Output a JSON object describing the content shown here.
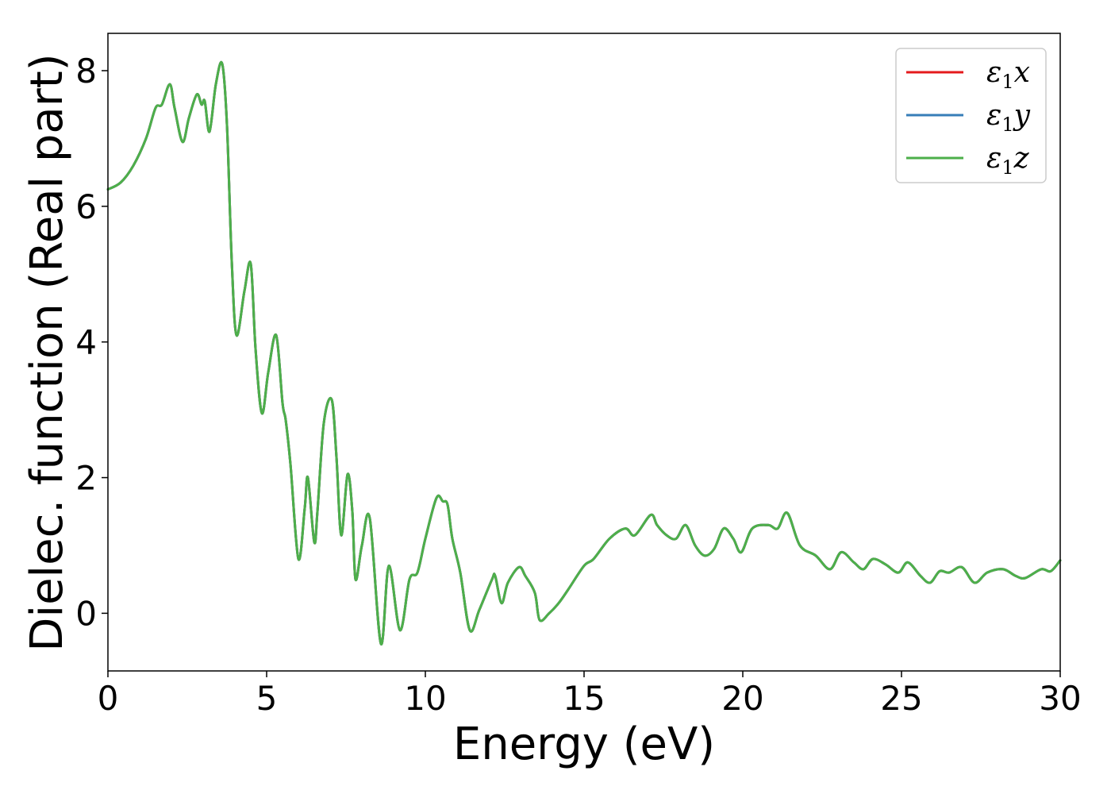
{
  "chart_data": {
    "type": "line",
    "xlabel": "Energy (eV)",
    "ylabel": "Dielec. function (Real part)",
    "xlim": [
      0,
      30
    ],
    "ylim": [
      -0.85,
      8.55
    ],
    "xticks": [
      0,
      5,
      10,
      15,
      20,
      25,
      30
    ],
    "yticks": [
      0,
      2,
      4,
      6,
      8
    ],
    "xtick_labels": [
      "0",
      "5",
      "10",
      "15",
      "20",
      "25",
      "30"
    ],
    "ytick_labels": [
      "0",
      "2",
      "4",
      "6",
      "8"
    ],
    "grid": false,
    "legend": {
      "placement": "top-right",
      "entries": [
        {
          "base": "ε",
          "sub": "1",
          "comp": "x",
          "color": "#e41a1c"
        },
        {
          "base": "ε",
          "sub": "1",
          "comp": "y",
          "color": "#377eb8"
        },
        {
          "base": "ε",
          "sub": "1",
          "comp": "z",
          "color": "#4daf4a"
        }
      ]
    },
    "series": [
      {
        "name": "ε1x",
        "color": "#e41a1c",
        "x": [
          0,
          0.4,
          0.8,
          1.2,
          1.5,
          1.7,
          1.95,
          2.1,
          2.35,
          2.55,
          2.8,
          2.95,
          3.05,
          3.2,
          3.4,
          3.6,
          3.75,
          3.9,
          4.05,
          4.3,
          4.5,
          4.65,
          4.85,
          5.05,
          5.3,
          5.5,
          5.6,
          5.75,
          6.0,
          6.2,
          6.3,
          6.5,
          6.6,
          6.8,
          7.05,
          7.2,
          7.35,
          7.55,
          7.7,
          7.8,
          8.0,
          8.25,
          8.6,
          8.85,
          9.2,
          9.5,
          9.75,
          10.0,
          10.35,
          10.55,
          10.7,
          10.85,
          11.1,
          11.4,
          11.7,
          12.1,
          12.2,
          12.4,
          12.6,
          12.95,
          13.15,
          13.45,
          13.6,
          13.9,
          14.2,
          14.5,
          15.0,
          15.3,
          15.8,
          16.3,
          16.6,
          17.1,
          17.3,
          17.6,
          17.9,
          18.2,
          18.5,
          18.8,
          19.1,
          19.4,
          19.7,
          19.95,
          20.3,
          20.8,
          21.1,
          21.4,
          21.8,
          22.3,
          22.75,
          23.1,
          23.5,
          23.8,
          24.1,
          24.5,
          24.9,
          25.2,
          25.6,
          25.9,
          26.2,
          26.5,
          26.9,
          27.3,
          27.7,
          28.2,
          28.6,
          28.9,
          29.4,
          29.7,
          30.0
        ],
        "y": [
          6.25,
          6.35,
          6.6,
          7.0,
          7.45,
          7.5,
          7.8,
          7.45,
          6.95,
          7.3,
          7.65,
          7.5,
          7.55,
          7.1,
          7.8,
          8.1,
          7.2,
          5.2,
          4.1,
          4.75,
          5.15,
          3.9,
          2.95,
          3.55,
          4.1,
          3.1,
          2.85,
          2.2,
          0.8,
          1.55,
          2.0,
          1.05,
          1.5,
          2.8,
          3.15,
          2.3,
          1.15,
          2.05,
          1.5,
          0.5,
          1.0,
          1.4,
          -0.45,
          0.7,
          -0.25,
          0.5,
          0.6,
          1.1,
          1.7,
          1.65,
          1.6,
          1.1,
          0.6,
          -0.25,
          0.05,
          0.5,
          0.55,
          0.15,
          0.45,
          0.68,
          0.55,
          0.3,
          -0.1,
          0.0,
          0.15,
          0.35,
          0.7,
          0.8,
          1.1,
          1.25,
          1.15,
          1.45,
          1.3,
          1.15,
          1.1,
          1.3,
          1.0,
          0.85,
          0.95,
          1.25,
          1.1,
          0.9,
          1.25,
          1.3,
          1.25,
          1.48,
          1.0,
          0.85,
          0.65,
          0.9,
          0.75,
          0.65,
          0.8,
          0.72,
          0.6,
          0.75,
          0.55,
          0.45,
          0.62,
          0.6,
          0.68,
          0.45,
          0.6,
          0.65,
          0.55,
          0.52,
          0.65,
          0.62,
          0.78
        ]
      },
      {
        "name": "ε1y",
        "color": "#377eb8",
        "x": [
          0,
          0.4,
          0.8,
          1.2,
          1.5,
          1.7,
          1.95,
          2.1,
          2.35,
          2.55,
          2.8,
          2.95,
          3.05,
          3.2,
          3.4,
          3.6,
          3.75,
          3.9,
          4.05,
          4.3,
          4.5,
          4.65,
          4.85,
          5.05,
          5.3,
          5.5,
          5.6,
          5.75,
          6.0,
          6.2,
          6.3,
          6.5,
          6.6,
          6.8,
          7.05,
          7.2,
          7.35,
          7.55,
          7.7,
          7.8,
          8.0,
          8.25,
          8.6,
          8.85,
          9.2,
          9.5,
          9.75,
          10.0,
          10.35,
          10.55,
          10.7,
          10.85,
          11.1,
          11.4,
          11.7,
          12.1,
          12.2,
          12.4,
          12.6,
          12.95,
          13.15,
          13.45,
          13.6,
          13.9,
          14.2,
          14.5,
          15.0,
          15.3,
          15.8,
          16.3,
          16.6,
          17.1,
          17.3,
          17.6,
          17.9,
          18.2,
          18.5,
          18.8,
          19.1,
          19.4,
          19.7,
          19.95,
          20.3,
          20.8,
          21.1,
          21.4,
          21.8,
          22.3,
          22.75,
          23.1,
          23.5,
          23.8,
          24.1,
          24.5,
          24.9,
          25.2,
          25.6,
          25.9,
          26.2,
          26.5,
          26.9,
          27.3,
          27.7,
          28.2,
          28.6,
          28.9,
          29.4,
          29.7,
          30.0
        ],
        "y": [
          6.25,
          6.35,
          6.6,
          7.0,
          7.45,
          7.5,
          7.8,
          7.45,
          6.95,
          7.3,
          7.65,
          7.5,
          7.55,
          7.1,
          7.8,
          8.1,
          7.2,
          5.2,
          4.1,
          4.75,
          5.15,
          3.9,
          2.95,
          3.55,
          4.1,
          3.1,
          2.85,
          2.2,
          0.8,
          1.55,
          2.0,
          1.05,
          1.5,
          2.8,
          3.15,
          2.3,
          1.15,
          2.05,
          1.5,
          0.5,
          1.0,
          1.4,
          -0.45,
          0.7,
          -0.25,
          0.5,
          0.6,
          1.1,
          1.7,
          1.65,
          1.6,
          1.1,
          0.6,
          -0.25,
          0.05,
          0.5,
          0.55,
          0.15,
          0.45,
          0.68,
          0.55,
          0.3,
          -0.1,
          0.0,
          0.15,
          0.35,
          0.7,
          0.8,
          1.1,
          1.25,
          1.15,
          1.45,
          1.3,
          1.15,
          1.1,
          1.3,
          1.0,
          0.85,
          0.95,
          1.25,
          1.1,
          0.9,
          1.25,
          1.3,
          1.25,
          1.48,
          1.0,
          0.85,
          0.65,
          0.9,
          0.75,
          0.65,
          0.8,
          0.72,
          0.6,
          0.75,
          0.55,
          0.45,
          0.62,
          0.6,
          0.68,
          0.45,
          0.6,
          0.65,
          0.55,
          0.52,
          0.65,
          0.62,
          0.78
        ]
      },
      {
        "name": "ε1z",
        "color": "#4daf4a",
        "x": [
          0,
          0.4,
          0.8,
          1.2,
          1.5,
          1.7,
          1.95,
          2.1,
          2.35,
          2.55,
          2.8,
          2.95,
          3.05,
          3.2,
          3.4,
          3.6,
          3.75,
          3.9,
          4.05,
          4.3,
          4.5,
          4.65,
          4.85,
          5.05,
          5.3,
          5.5,
          5.6,
          5.75,
          6.0,
          6.2,
          6.3,
          6.5,
          6.6,
          6.8,
          7.05,
          7.2,
          7.35,
          7.55,
          7.7,
          7.8,
          8.0,
          8.25,
          8.6,
          8.85,
          9.2,
          9.5,
          9.75,
          10.0,
          10.35,
          10.55,
          10.7,
          10.85,
          11.1,
          11.4,
          11.7,
          12.1,
          12.2,
          12.4,
          12.6,
          12.95,
          13.15,
          13.45,
          13.6,
          13.9,
          14.2,
          14.5,
          15.0,
          15.3,
          15.8,
          16.3,
          16.6,
          17.1,
          17.3,
          17.6,
          17.9,
          18.2,
          18.5,
          18.8,
          19.1,
          19.4,
          19.7,
          19.95,
          20.3,
          20.8,
          21.1,
          21.4,
          21.8,
          22.3,
          22.75,
          23.1,
          23.5,
          23.8,
          24.1,
          24.5,
          24.9,
          25.2,
          25.6,
          25.9,
          26.2,
          26.5,
          26.9,
          27.3,
          27.7,
          28.2,
          28.6,
          28.9,
          29.4,
          29.7,
          30.0
        ],
        "y": [
          6.25,
          6.35,
          6.6,
          7.0,
          7.45,
          7.5,
          7.8,
          7.45,
          6.95,
          7.3,
          7.65,
          7.5,
          7.55,
          7.1,
          7.8,
          8.1,
          7.2,
          5.2,
          4.1,
          4.75,
          5.15,
          3.9,
          2.95,
          3.55,
          4.1,
          3.1,
          2.85,
          2.2,
          0.8,
          1.55,
          2.0,
          1.05,
          1.5,
          2.8,
          3.15,
          2.3,
          1.15,
          2.05,
          1.5,
          0.5,
          1.0,
          1.4,
          -0.45,
          0.7,
          -0.25,
          0.5,
          0.6,
          1.1,
          1.7,
          1.65,
          1.6,
          1.1,
          0.6,
          -0.25,
          0.05,
          0.5,
          0.55,
          0.15,
          0.45,
          0.68,
          0.55,
          0.3,
          -0.1,
          0.0,
          0.15,
          0.35,
          0.7,
          0.8,
          1.1,
          1.25,
          1.15,
          1.45,
          1.3,
          1.15,
          1.1,
          1.3,
          1.0,
          0.85,
          0.95,
          1.25,
          1.1,
          0.9,
          1.25,
          1.3,
          1.25,
          1.48,
          1.0,
          0.85,
          0.65,
          0.9,
          0.75,
          0.65,
          0.8,
          0.72,
          0.6,
          0.75,
          0.55,
          0.45,
          0.62,
          0.6,
          0.68,
          0.45,
          0.6,
          0.65,
          0.55,
          0.52,
          0.65,
          0.62,
          0.78
        ]
      }
    ]
  }
}
